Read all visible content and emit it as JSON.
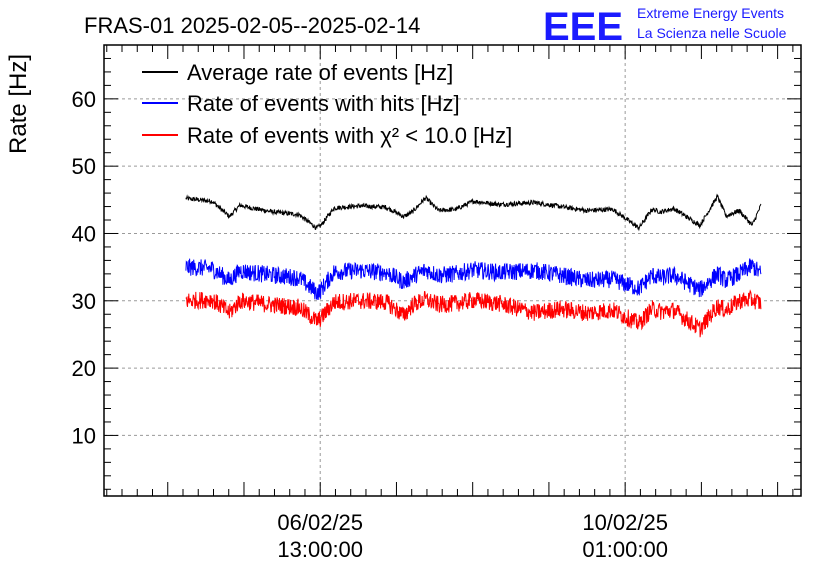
{
  "header": {
    "title": "FRAS-01 2025-02-05--2025-02-14",
    "logo_text": "EEE",
    "org_line1": "Extreme Energy Events",
    "org_line2": "La Scienza nelle Scuole"
  },
  "colors": {
    "average": "#000000",
    "hits": "#0000ff",
    "chi2": "#ff0000",
    "logo": "#1a1aff",
    "grid": "#9a9a9a"
  },
  "chart_data": {
    "type": "line",
    "title": "FRAS-01 2025-02-05--2025-02-14",
    "ylabel": "Rate [Hz]",
    "xlabel": "",
    "ylim": [
      1,
      68
    ],
    "x_unit": "days since 2025-02-05 00:00",
    "xlim": [
      -0.94,
      7.06
    ],
    "yticks_major": [
      10,
      20,
      30,
      40,
      50,
      60
    ],
    "xticks_labeled": [
      {
        "x": 1.5417,
        "line1": "06/02/25",
        "line2": "13:00:00"
      },
      {
        "x": 5.0417,
        "line1": "10/02/25",
        "line2": "01:00:00"
      }
    ],
    "x_start": 0.0,
    "x_end": 6.6,
    "grid": true,
    "legend_position": "top-left",
    "series": [
      {
        "name": "Average rate of events [Hz]",
        "x": [
          0.0,
          0.3,
          0.5,
          0.62,
          0.75,
          1.0,
          1.3,
          1.5,
          1.55,
          1.7,
          2.0,
          2.3,
          2.5,
          2.6,
          2.75,
          2.9,
          3.1,
          3.3,
          3.6,
          4.0,
          4.3,
          4.6,
          4.9,
          5.2,
          5.35,
          5.45,
          5.6,
          5.9,
          6.1,
          6.2,
          6.35,
          6.5,
          6.6
        ],
        "values": [
          45.2,
          44.8,
          42.5,
          44.2,
          43.8,
          43.2,
          42.8,
          40.8,
          41.2,
          43.8,
          44.1,
          43.9,
          42.5,
          43.2,
          45.3,
          43.4,
          43.6,
          44.8,
          44.3,
          44.6,
          44.0,
          43.4,
          43.6,
          40.8,
          43.6,
          43.2,
          43.7,
          41.2,
          45.5,
          42.6,
          43.4,
          41.2,
          44.2
        ]
      },
      {
        "name": "Rate of events with hits [Hz]",
        "x": [
          0.0,
          0.3,
          0.5,
          0.62,
          0.75,
          1.0,
          1.3,
          1.5,
          1.55,
          1.7,
          2.0,
          2.3,
          2.5,
          2.6,
          2.75,
          2.9,
          3.1,
          3.3,
          3.6,
          4.0,
          4.3,
          4.6,
          4.9,
          5.2,
          5.35,
          5.45,
          5.6,
          5.9,
          6.1,
          6.2,
          6.35,
          6.5,
          6.6
        ],
        "values": [
          35.0,
          34.8,
          33.0,
          34.5,
          34.2,
          33.8,
          33.4,
          31.2,
          31.6,
          34.3,
          34.5,
          34.2,
          32.8,
          33.6,
          34.6,
          33.8,
          34.0,
          34.6,
          34.2,
          34.5,
          33.8,
          33.0,
          33.2,
          31.8,
          33.8,
          33.4,
          33.8,
          31.6,
          34.0,
          33.0,
          34.0,
          35.2,
          34.0
        ]
      },
      {
        "name": "Rate of events with χ² < 10.0 [Hz]",
        "x": [
          0.0,
          0.3,
          0.5,
          0.62,
          0.75,
          1.0,
          1.3,
          1.5,
          1.55,
          1.7,
          2.0,
          2.3,
          2.5,
          2.6,
          2.75,
          2.9,
          3.1,
          3.3,
          3.6,
          4.0,
          4.3,
          4.6,
          4.9,
          5.2,
          5.35,
          5.45,
          5.6,
          5.9,
          6.1,
          6.2,
          6.35,
          6.5,
          6.6
        ],
        "values": [
          30.0,
          30.2,
          28.2,
          30.0,
          29.8,
          29.4,
          29.0,
          27.0,
          27.4,
          29.8,
          30.0,
          29.8,
          27.8,
          29.4,
          30.2,
          29.4,
          29.6,
          30.1,
          29.6,
          28.2,
          28.8,
          28.2,
          28.6,
          26.6,
          28.8,
          28.4,
          28.6,
          25.8,
          29.2,
          28.6,
          30.0,
          30.2,
          29.6
        ]
      }
    ]
  }
}
